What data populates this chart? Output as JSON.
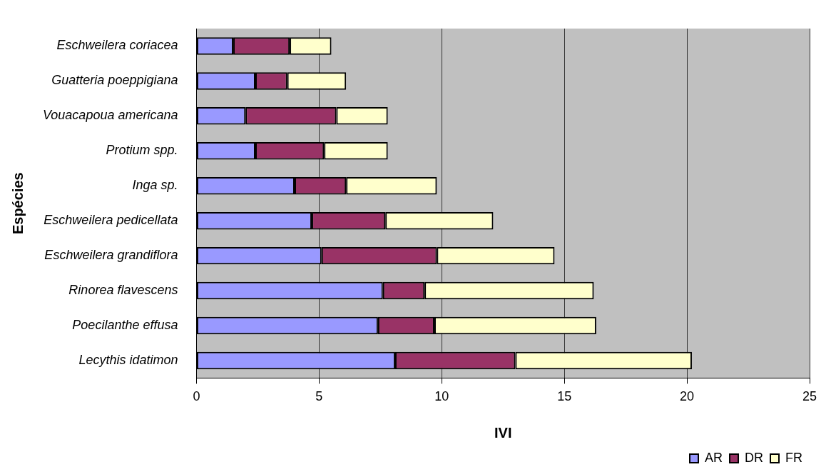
{
  "chart_data": {
    "type": "bar",
    "orientation": "horizontal",
    "stacked": true,
    "xlabel": "IVI",
    "ylabel": "Espécies",
    "categories": [
      "Eschweilera coriacea",
      "Guatteria poeppigiana",
      "Vouacapoua americana",
      "Protium spp.",
      "Inga sp.",
      "Eschweilera pedicellata",
      "Eschweilera grandiflora",
      "Rinorea flavescens",
      "Poecilanthe effusa",
      "Lecythis idatimon"
    ],
    "series": [
      {
        "name": "AR",
        "color": "#9999ff",
        "values": [
          1.5,
          2.4,
          2.0,
          2.4,
          4.0,
          4.7,
          5.1,
          7.6,
          7.4,
          8.1
        ]
      },
      {
        "name": "DR",
        "color": "#993366",
        "values": [
          2.3,
          1.3,
          3.7,
          2.8,
          2.1,
          3.0,
          4.7,
          1.7,
          2.3,
          4.9
        ]
      },
      {
        "name": "FR",
        "color": "#ffffcc",
        "values": [
          1.7,
          2.4,
          2.1,
          2.6,
          3.7,
          4.4,
          4.8,
          6.9,
          6.6,
          7.2
        ]
      }
    ],
    "xlim": [
      0,
      25
    ],
    "xticks": [
      0,
      5,
      10,
      15,
      20,
      25
    ],
    "grid": "x",
    "legend": "bottom right"
  }
}
